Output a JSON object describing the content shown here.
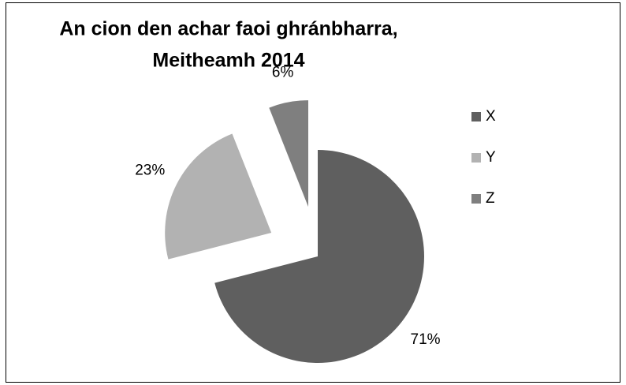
{
  "chart_data": {
    "type": "pie",
    "title": [
      "An cion den achar faoi ghránbharra,",
      "Meitheamh  2014"
    ],
    "categories": [
      "X",
      "Y",
      "Z"
    ],
    "values": [
      71,
      23,
      6
    ],
    "value_labels": [
      "71%",
      "23%",
      "6%"
    ],
    "colors": [
      "#5f5f5f",
      "#b2b2b2",
      "#7f7f7f"
    ],
    "legend": "right"
  }
}
